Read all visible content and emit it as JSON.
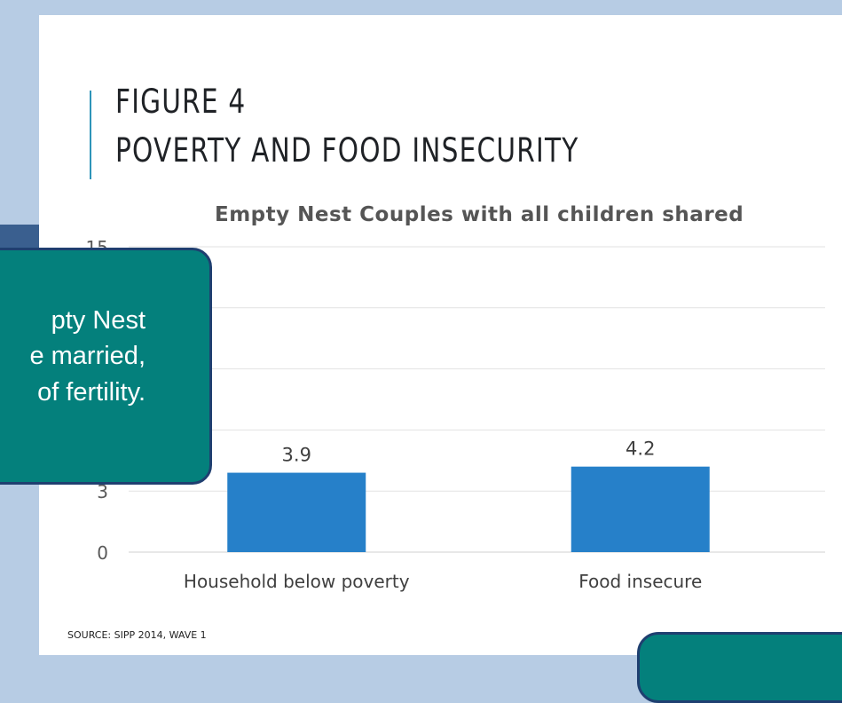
{
  "slide": {
    "title_line1": "FIGURE 4",
    "title_line2": "POVERTY AND FOOD INSECURITY",
    "source": "SOURCE: SIPP 2014, WAVE 1"
  },
  "callout": {
    "lines": [
      "pty Nest",
      "e married,",
      "of fertility."
    ]
  },
  "colors": {
    "bar": "#2680c9",
    "callout_fill": "#04807c",
    "callout_border": "#1f3f70",
    "background": "#b7cce4",
    "title_accent": "#2e94b9"
  },
  "chart_data": {
    "type": "bar",
    "title": "Empty Nest Couples with all children shared",
    "categories": [
      "Household below poverty",
      "Food insecure"
    ],
    "values": [
      3.9,
      4.2
    ],
    "data_labels": [
      "3.9",
      "4.2"
    ],
    "y_ticks": [
      0,
      3,
      6,
      9,
      12,
      15
    ],
    "y_tick_labels_visible": [
      "0",
      "3",
      "15"
    ],
    "ylim": [
      0,
      15
    ],
    "xlabel": "",
    "ylabel": "",
    "grid": true,
    "legend": "none"
  }
}
